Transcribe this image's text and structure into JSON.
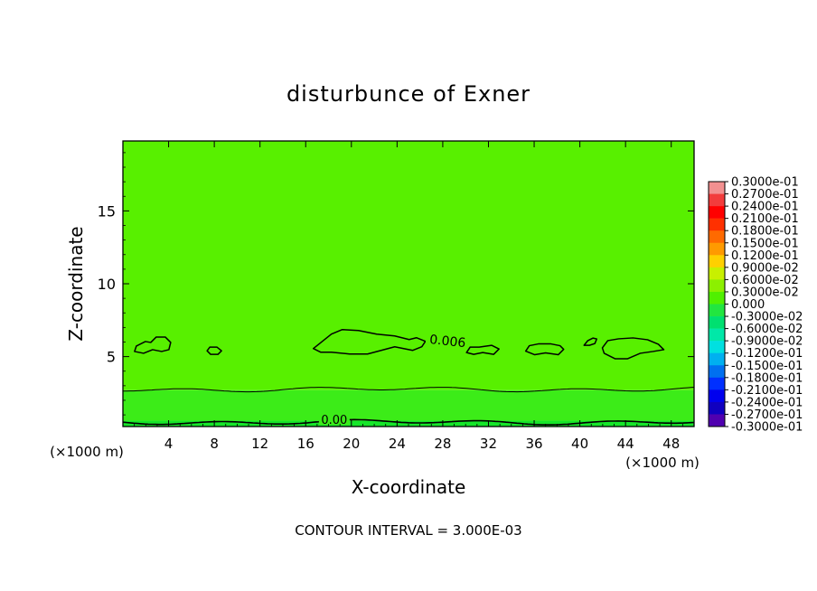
{
  "chart_data": {
    "type": "heatmap",
    "title": "disturbunce of Exner",
    "xlabel": "X-coordinate",
    "ylabel": "Z-coordinate",
    "x_unit_left": "(×1000 m)",
    "x_unit_right": "(×1000 m)",
    "xlim": [
      0,
      50
    ],
    "ylim": [
      0.2,
      19.8
    ],
    "x_ticks": [
      4,
      8,
      12,
      16,
      20,
      24,
      28,
      32,
      36,
      40,
      44,
      48
    ],
    "x_tick_labels": [
      "4",
      "8",
      "12",
      "16",
      "20",
      "24",
      "28",
      "32",
      "36",
      "40",
      "44",
      "48"
    ],
    "y_ticks": [
      5,
      10,
      15
    ],
    "y_tick_labels": [
      "5",
      "10",
      "15"
    ],
    "footer": "CONTOUR INTERVAL = 3.000E-03",
    "contour_interval": 0.003,
    "background_field": [
      {
        "z_from": 0.2,
        "z_to": 0.6,
        "color": "#16e62a"
      },
      {
        "z_from": 0.6,
        "z_to": 2.7,
        "color": "#3cec18"
      },
      {
        "z_from": 2.7,
        "z_to": 19.8,
        "color": "#58f000"
      }
    ],
    "contour_lines": [
      {
        "label": "0.00",
        "z": 0.5
      },
      {
        "label": "",
        "z": 2.75
      }
    ],
    "closed_contours": [
      {
        "label": "0.006",
        "x_center": 2.6,
        "z_center": 5.6
      },
      {
        "label": "",
        "x_center": 8.0,
        "z_center": 5.4
      },
      {
        "label": "",
        "x_center": 23.0,
        "z_center": 5.8
      },
      {
        "label": "",
        "x_center": 31.5,
        "z_center": 5.4
      },
      {
        "label": "",
        "x_center": 37.0,
        "z_center": 5.5
      },
      {
        "label": "",
        "x_center": 41.0,
        "z_center": 5.9
      },
      {
        "label": "",
        "x_center": 44.5,
        "z_center": 5.6
      }
    ],
    "colorbar": {
      "labels": [
        "0.3000e-01",
        "0.2700e-01",
        "0.2400e-01",
        "0.2100e-01",
        "0.1800e-01",
        "0.1500e-01",
        "0.1200e-01",
        "0.9000e-02",
        "0.6000e-02",
        "0.3000e-02",
        "0.000",
        "-0.3000e-02",
        "-0.6000e-02",
        "-0.9000e-02",
        "-0.1200e-01",
        "-0.1500e-01",
        "-0.1800e-01",
        "-0.2100e-01",
        "-0.2400e-01",
        "-0.2700e-01",
        "-0.3000e-01"
      ],
      "colors": [
        "#f29090",
        "#f23c3c",
        "#ff0000",
        "#ff3000",
        "#ff6a00",
        "#ff9a00",
        "#ffd000",
        "#c8f000",
        "#8cf000",
        "#50f000",
        "#22e640",
        "#00e070",
        "#00e8a8",
        "#00e0e0",
        "#00b0f0",
        "#0070f0",
        "#0030ff",
        "#0000ee",
        "#1000c0",
        "#5000b0"
      ]
    }
  }
}
